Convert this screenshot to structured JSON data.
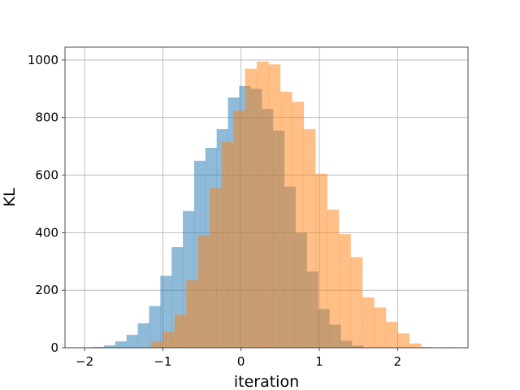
{
  "chart_data": {
    "type": "bar",
    "subtype": "overlapping-histogram",
    "title": "",
    "xlabel": "iteration",
    "ylabel": "KL",
    "xlim": [
      -2.25,
      2.9
    ],
    "ylim": [
      0,
      1045
    ],
    "xticks": [
      -2,
      -1,
      0,
      1,
      2
    ],
    "yticks": [
      0,
      200,
      400,
      600,
      800,
      1000
    ],
    "grid": true,
    "colors": {
      "series_a": "#1f77b4",
      "series_b": "#ff7f0e"
    },
    "bar_alpha": 0.5,
    "series": [
      {
        "bin_edges": [
          -2.04,
          -1.896,
          -1.752,
          -1.608,
          -1.464,
          -1.32,
          -1.176,
          -1.032,
          -0.888,
          -0.744,
          -0.6,
          -0.456,
          -0.312,
          -0.168,
          -0.024,
          0.12,
          0.264,
          0.408,
          0.552,
          0.696,
          0.84,
          0.984,
          1.128,
          1.272,
          1.416,
          1.56
        ],
        "counts": [
          1,
          3,
          8,
          22,
          45,
          85,
          145,
          250,
          350,
          475,
          650,
          695,
          760,
          870,
          910,
          900,
          830,
          755,
          560,
          400,
          265,
          135,
          80,
          24,
          7
        ]
      },
      {
        "bin_edges": [
          -1.15,
          -1.0,
          -0.85,
          -0.7,
          -0.55,
          -0.4,
          -0.25,
          -0.1,
          0.05,
          0.2,
          0.35,
          0.5,
          0.65,
          0.8,
          0.95,
          1.1,
          1.25,
          1.4,
          1.55,
          1.7,
          1.85,
          2.0,
          2.15,
          2.3,
          2.45,
          2.6,
          2.75
        ],
        "counts": [
          20,
          55,
          115,
          235,
          390,
          555,
          715,
          825,
          970,
          995,
          985,
          890,
          855,
          760,
          605,
          480,
          395,
          315,
          175,
          140,
          90,
          50,
          15,
          3,
          1,
          2
        ]
      }
    ]
  }
}
